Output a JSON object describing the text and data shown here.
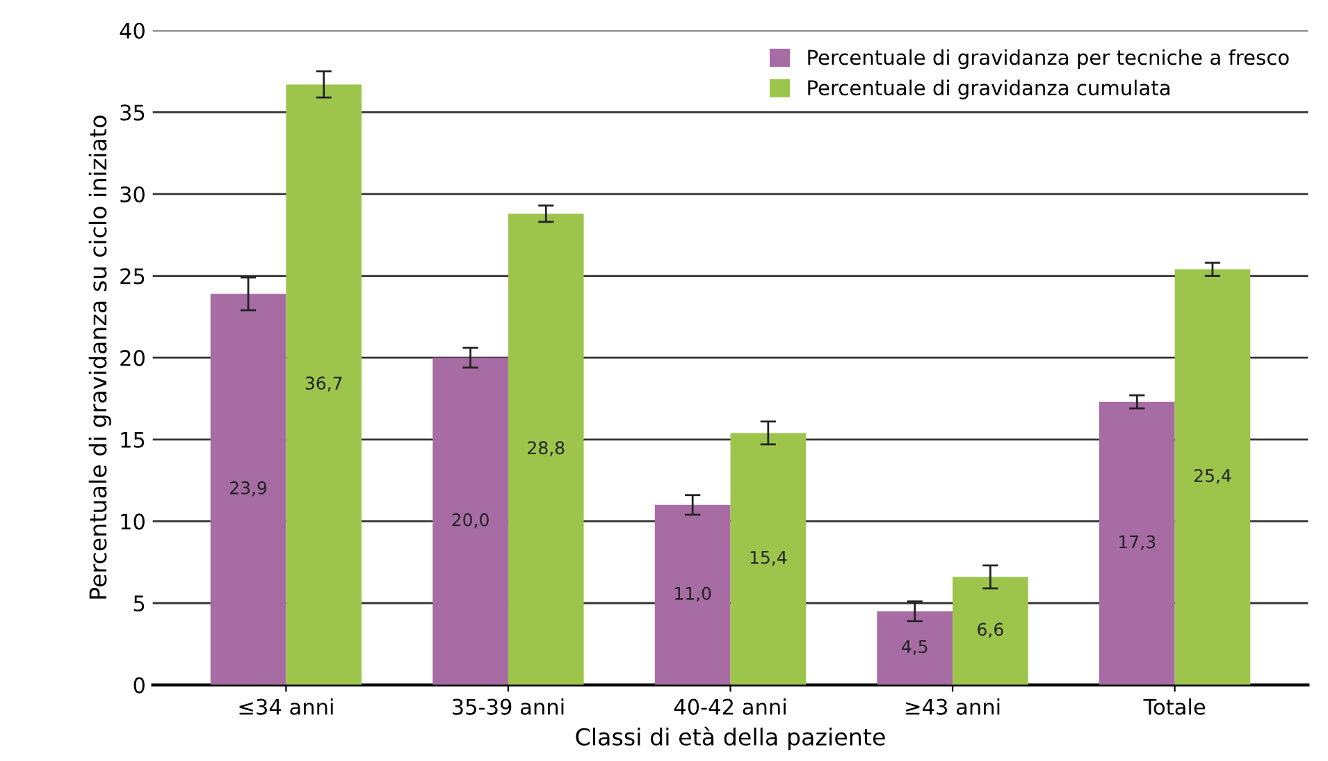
{
  "chart_data": {
    "type": "bar",
    "xlabel": "Classi di età della paziente",
    "ylabel": "Percentuale di gravidanza su ciclo iniziato",
    "categories": [
      "≤34 anni",
      "35-39 anni",
      "40-42 anni",
      "≥43 anni",
      "Totale"
    ],
    "series": [
      {
        "name": "Percentuale di gravidanza per tecniche a fresco",
        "color": "#a66ca3",
        "values": [
          23.9,
          20.0,
          11.0,
          4.5,
          17.3
        ],
        "errors": [
          1.0,
          0.6,
          0.6,
          0.6,
          0.4
        ],
        "value_labels": [
          "23,9",
          "20,0",
          "11,0",
          "4,5",
          "17,3"
        ]
      },
      {
        "name": "Percentuale di gravidanza cumulata",
        "color": "#9dc54b",
        "values": [
          36.7,
          28.8,
          15.4,
          6.6,
          25.4
        ],
        "errors": [
          0.8,
          0.5,
          0.7,
          0.7,
          0.4
        ],
        "value_labels": [
          "36,7",
          "28,8",
          "15,4",
          "6,6",
          "25,4"
        ]
      }
    ],
    "ylim": [
      0,
      40
    ],
    "yticks": [
      0,
      5,
      10,
      15,
      20,
      25,
      30,
      35,
      40
    ],
    "grid": "y",
    "legend": "top right"
  }
}
